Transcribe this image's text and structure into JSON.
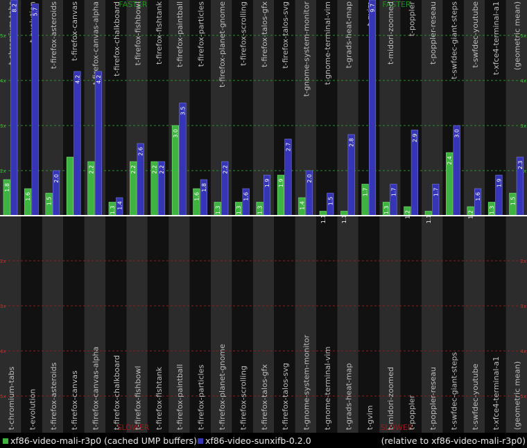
{
  "chart_data": {
    "type": "bar",
    "categories": [
      "t-chromium-tabs",
      "t-evolution",
      "t-firefox-asteroids",
      "t-firefox-canvas",
      "t-firefox-canvas-alpha",
      "t-firefox-chalkboard",
      "t-firefox-fishbowl",
      "t-firefox-fishtank",
      "t-firefox-paintball",
      "t-firefox-particles",
      "t-firefox-planet-gnome",
      "t-firefox-scrolling",
      "t-firefox-talos-gfx",
      "t-firefox-talos-svg",
      "t-gnome-system-monitor",
      "t-gnome-terminal-vim",
      "t-grads-heat-map",
      "t-gvim",
      "t-midori-zoomed",
      "t-poppler",
      "t-poppler-reseau",
      "t-swfdec-giant-steps",
      "t-swfdec-youtube",
      "t-xfce4-terminal-a1",
      "(geometric mean)"
    ],
    "series": [
      {
        "name": "xf86-video-mali-r3p0 (cached UMP buffers)",
        "color": "#3fb33f",
        "values": [
          1.8,
          1.6,
          1.5,
          2.3,
          2.2,
          1.3,
          2.2,
          2.2,
          3.0,
          1.6,
          1.3,
          1.3,
          1.3,
          1.9,
          1.4,
          1.1,
          1.1,
          1.7,
          1.3,
          1.2,
          1.1,
          2.4,
          1.2,
          1.3,
          1.5
        ],
        "labels": [
          "1.8",
          "1.6",
          "1.5",
          "",
          "2.2",
          "1.3",
          "2.2",
          "2.2",
          "3.0",
          "1.6",
          "1.3",
          "1.3",
          "1.3",
          "1.9",
          "1.4",
          "1.1",
          "1.1",
          "1.7",
          "1.3",
          "1.2",
          "1.1",
          "2.4",
          "1.2",
          "1.3",
          "1.5"
        ]
      },
      {
        "name": "xf86-video-sunxifb-0.2.0",
        "color": "#3535b5",
        "values": [
          8.2,
          5.7,
          2.0,
          4.2,
          4.2,
          1.4,
          2.6,
          2.2,
          3.5,
          1.8,
          2.2,
          1.6,
          1.9,
          2.7,
          2.0,
          1.5,
          2.8,
          9.7,
          1.7,
          2.9,
          1.7,
          3.0,
          1.6,
          1.9,
          2.3
        ],
        "labels": [
          "8.2",
          "5.7",
          "2.0",
          "4.2",
          "4.2",
          "1.4",
          "2.6",
          "2.2",
          "3.5",
          "1.8",
          "2.2",
          "1.6",
          "1.9",
          "2.7",
          "2.0",
          "1.5",
          "2.8",
          "9.7",
          "1.7",
          "2.9",
          "1.7",
          "3.0",
          "1.6",
          "1.9",
          "2.3"
        ]
      }
    ],
    "faster_ticks": [
      "2x",
      "3x",
      "4x",
      "5x"
    ],
    "slower_ticks": [
      "2x",
      "3x",
      "4x",
      "5x"
    ],
    "faster_label": "FASTER",
    "slower_label": "SLOWER",
    "ylim_faster": [
      1,
      5.9
    ],
    "relative_note": "(relative to xf86-video-mali-r3p0)",
    "grid": true,
    "legend_position": "bottom"
  }
}
